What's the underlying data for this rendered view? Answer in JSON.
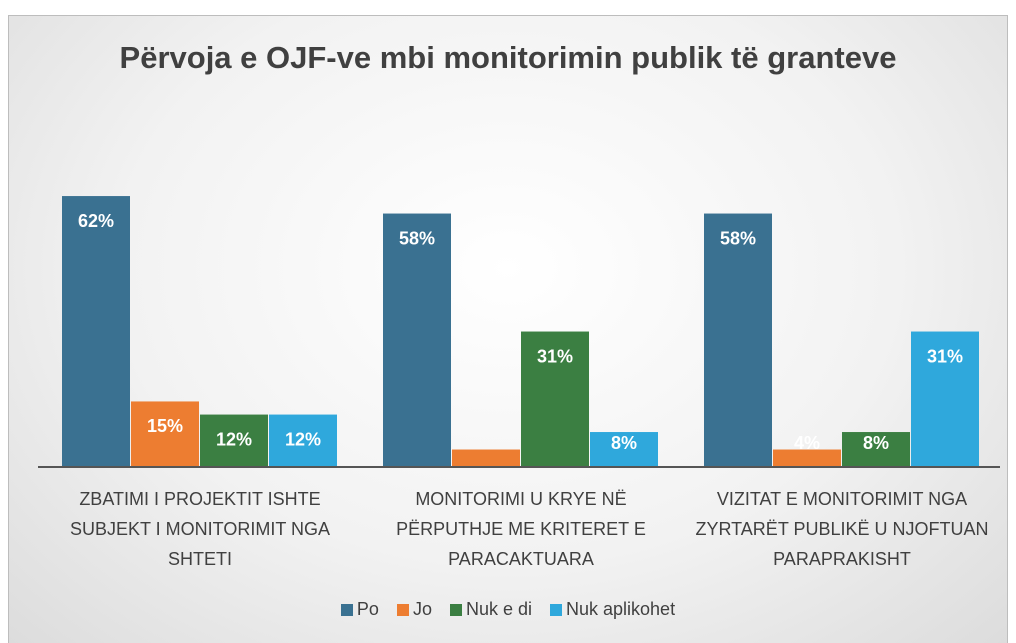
{
  "chart_data": {
    "type": "bar",
    "title": "Përvoja e OJF-ve mbi monitorimin publik të granteve",
    "categories": [
      "ZBATIMI I PROJEKTIT ISHTE SUBJEKT I MONITORIMIT NGA SHTETI",
      "MONITORIMI U KRYE NË PËRPUTHJE ME KRITERET E PARACAKTUARA",
      "VIZITAT E MONITORIMIT NGA ZYRTARËT PUBLIKË U NJOFTUAN PARAPRAKISHT"
    ],
    "series": [
      {
        "name": "Po",
        "color": "#3a7191",
        "values": [
          62,
          58,
          58
        ],
        "value_labels": [
          "62%",
          "58%",
          "58%"
        ]
      },
      {
        "name": "Jo",
        "color": "#ed7d31",
        "values": [
          15,
          4,
          4
        ],
        "value_labels": [
          "15%",
          null,
          "4%"
        ]
      },
      {
        "name": "Nuk e di",
        "color": "#3b7f42",
        "values": [
          12,
          31,
          8
        ],
        "value_labels": [
          "12%",
          "31%",
          "8%"
        ]
      },
      {
        "name": "Nuk aplikohet",
        "color": "#2fa8dc",
        "values": [
          12,
          8,
          31
        ],
        "value_labels": [
          "12%",
          "8%",
          "31%"
        ]
      }
    ],
    "legend": "bottom"
  }
}
